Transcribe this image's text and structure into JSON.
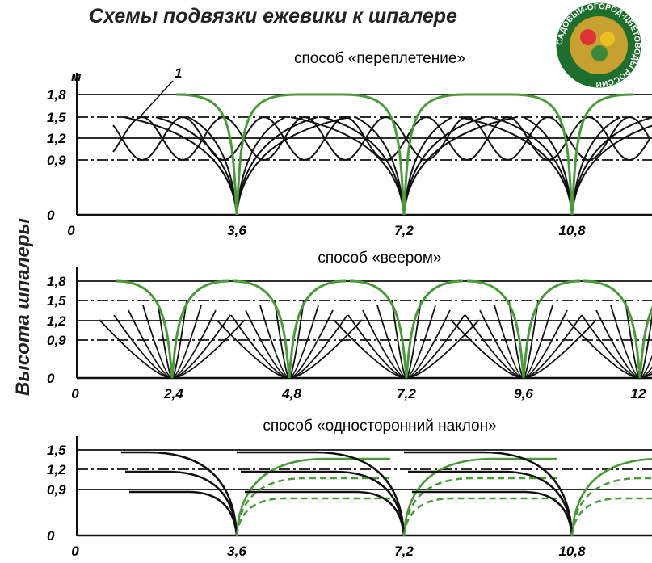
{
  "title": "Схемы подвязки ежевики к шпалере",
  "y_axis_label": "Высота шпалеры",
  "logo": {
    "text": "САДОВЫЙ-ОГОРОД-ЦВЕТОВОДЫ РОССИИ"
  },
  "panels": [
    {
      "title": "способ «переплетение»",
      "unit": "м",
      "callout": "1",
      "y_labels": [
        "1,8",
        "1,5",
        "1,2",
        "0,9",
        "0"
      ],
      "x_labels": [
        "0",
        "3,6",
        "7,2",
        "10,8"
      ]
    },
    {
      "title": "способ «веером»",
      "y_labels": [
        "1,8",
        "1,5",
        "1,2",
        "0,9",
        "0"
      ],
      "x_labels": [
        "0",
        "2,4",
        "4,8",
        "7,2",
        "9,6",
        "12"
      ]
    },
    {
      "title": "способ «односторонний наклон»",
      "y_labels": [
        "1,5",
        "1,2",
        "0,9",
        "0"
      ],
      "x_labels": [
        "0",
        "3,6",
        "7,2",
        "10,8"
      ]
    }
  ]
}
